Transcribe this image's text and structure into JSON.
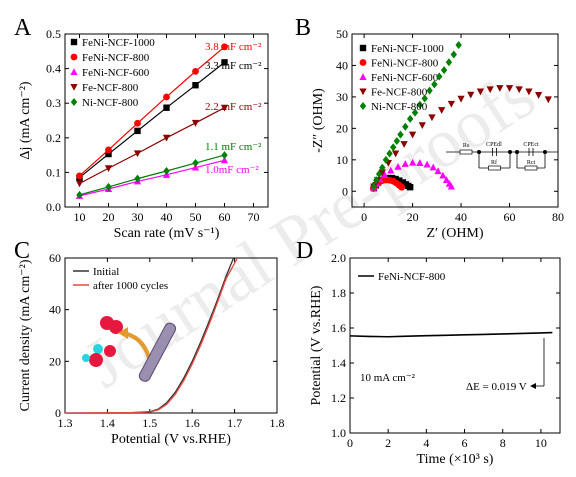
{
  "watermark": "Journal Pre-proofs",
  "chart_data": [
    {
      "panel": "A",
      "type": "line",
      "xlabel": "Scan rate (mV s⁻¹)",
      "ylabel": "Δj (mA cm⁻²)",
      "xlim": [
        5,
        75
      ],
      "ylim": [
        0,
        0.5
      ],
      "xticks": [
        10,
        20,
        30,
        40,
        50,
        60,
        70
      ],
      "yticks": [
        0.0,
        0.1,
        0.2,
        0.3,
        0.4,
        0.5
      ],
      "ytick_labels": [
        "0.0",
        "0.1",
        "0.2",
        "0.3",
        "0.4",
        "0.5"
      ],
      "legend_position": "top-left",
      "x": [
        10,
        20,
        30,
        40,
        50,
        60
      ],
      "series": [
        {
          "name": "FeNi-NCF-1000",
          "color": "#000000",
          "marker": "square",
          "values": [
            0.085,
            0.153,
            0.22,
            0.287,
            0.352,
            0.418
          ],
          "annotation": "3.3 mF cm⁻²"
        },
        {
          "name": "FeNi-NCF-800",
          "color": "#ff0000",
          "marker": "circle",
          "values": [
            0.09,
            0.165,
            0.242,
            0.318,
            0.392,
            0.463
          ],
          "annotation": "3.8 mF cm⁻²"
        },
        {
          "name": "FeNi-NCF-600",
          "color": "#ff00ff",
          "marker": "triangle-up",
          "values": [
            0.032,
            0.052,
            0.074,
            0.093,
            0.114,
            0.135
          ],
          "annotation": "1.0mF cm⁻²"
        },
        {
          "name": "Fe-NCF-800",
          "color": "#8b0000",
          "marker": "triangle-down",
          "values": [
            0.068,
            0.112,
            0.155,
            0.2,
            0.243,
            0.287
          ],
          "annotation": "2.2 mF cm⁻²"
        },
        {
          "name": "Ni-NCF-800",
          "color": "#008000",
          "marker": "diamond",
          "values": [
            0.035,
            0.058,
            0.082,
            0.104,
            0.127,
            0.15
          ],
          "annotation": "1.1 mF cm⁻²"
        }
      ]
    },
    {
      "panel": "B",
      "type": "scatter",
      "xlabel": "Z′ (OHM)",
      "ylabel": "-Z″ (OHM)",
      "xlim": [
        -5,
        80
      ],
      "ylim": [
        -5,
        50
      ],
      "xticks": [
        0,
        20,
        40,
        60,
        80
      ],
      "yticks": [
        0,
        10,
        20,
        30,
        40,
        50
      ],
      "legend_position": "top-left",
      "circuit_labels": [
        "Rs",
        "CPEdl",
        "Rf",
        "CPEct",
        "Rct"
      ],
      "series": [
        {
          "name": "FeNi-NCF-1000",
          "color": "#000000",
          "marker": "square",
          "x": [
            4.0,
            4.8,
            5.8,
            7.0,
            8.5,
            10.0,
            11.5,
            13.0,
            14.5,
            16.0,
            17.2,
            18.2,
            19.0
          ],
          "y": [
            1.0,
            1.9,
            2.8,
            3.5,
            4.0,
            4.2,
            4.2,
            3.9,
            3.4,
            2.8,
            2.2,
            1.7,
            1.3
          ]
        },
        {
          "name": "FeNi-NCF-800",
          "color": "#ff0000",
          "marker": "circle",
          "x": [
            3.8,
            4.5,
            5.3,
            6.3,
            7.5,
            9.0,
            10.5,
            12.0,
            13.3,
            14.5,
            15.5
          ],
          "y": [
            0.9,
            1.7,
            2.4,
            3.0,
            3.4,
            3.6,
            3.5,
            3.2,
            2.6,
            1.9,
            1.3
          ]
        },
        {
          "name": "FeNi-NCF-600",
          "color": "#ff00ff",
          "marker": "triangle-up",
          "x": [
            4.0,
            5.0,
            6.5,
            8.5,
            11.0,
            14.0,
            17.0,
            20.0,
            23.0,
            26.0,
            28.5,
            30.5,
            32.5,
            34.0,
            35.2,
            36.0
          ],
          "y": [
            1.2,
            2.4,
            3.8,
            5.2,
            6.6,
            7.8,
            8.7,
            9.1,
            9.0,
            8.5,
            7.6,
            6.4,
            5.0,
            3.6,
            2.4,
            1.5
          ]
        },
        {
          "name": "Fe-NCF-800",
          "color": "#8b0000",
          "marker": "triangle-down",
          "x": [
            4.0,
            5.5,
            7.5,
            10.0,
            13.0,
            16.5,
            20.0,
            24.0,
            28.0,
            32.0,
            36.0,
            40.0,
            44.0,
            48.0,
            52.0,
            56.0,
            60.0,
            64.0,
            68.0,
            72.0,
            76.0
          ],
          "y": [
            1.5,
            3.5,
            6.0,
            9.0,
            12.0,
            15.0,
            18.0,
            21.0,
            23.5,
            25.8,
            27.8,
            29.4,
            30.7,
            31.7,
            32.4,
            32.8,
            32.8,
            32.4,
            31.7,
            30.6,
            29.2
          ]
        },
        {
          "name": "Ni-NCF-800",
          "color": "#008000",
          "marker": "diamond",
          "x": [
            4.0,
            5.0,
            6.2,
            7.5,
            9.0,
            10.5,
            12.0,
            13.5,
            15.0,
            17.0,
            19.0,
            21.0,
            23.0,
            25.0,
            27.0,
            29.0,
            31.0,
            33.0,
            35.0,
            37.0,
            39.0
          ],
          "y": [
            1.5,
            3.5,
            5.5,
            7.5,
            10.0,
            12.0,
            14.0,
            16.0,
            18.0,
            20.5,
            23.0,
            25.0,
            27.5,
            29.5,
            32.0,
            34.0,
            36.5,
            38.5,
            41.0,
            43.5,
            46.5
          ]
        }
      ]
    },
    {
      "panel": "C",
      "type": "line",
      "xlabel": "Potential (V vs.RHE)",
      "ylabel": "Current density (mA cm⁻²)",
      "xlim": [
        1.3,
        1.8
      ],
      "ylim": [
        0,
        60
      ],
      "xticks": [
        1.3,
        1.4,
        1.5,
        1.6,
        1.7,
        1.8
      ],
      "xtick_labels": [
        "1.3",
        "1.4",
        "1.5",
        "1.6",
        "1.7",
        "1.8"
      ],
      "yticks": [
        0,
        20,
        40,
        60
      ],
      "legend_position": "top-left",
      "series": [
        {
          "name": "Initial",
          "color": "#333333",
          "x": [
            1.3,
            1.45,
            1.5,
            1.52,
            1.54,
            1.56,
            1.58,
            1.6,
            1.62,
            1.64,
            1.66,
            1.68,
            1.7
          ],
          "y": [
            0,
            0.1,
            0.5,
            1.5,
            4.0,
            8.0,
            13.5,
            20.0,
            27.5,
            35.5,
            44.0,
            53.0,
            61.0
          ]
        },
        {
          "name": "after 1000 cycles",
          "color": "#e8473f",
          "x": [
            1.3,
            1.45,
            1.5,
            1.52,
            1.54,
            1.56,
            1.58,
            1.6,
            1.62,
            1.64,
            1.66,
            1.68,
            1.71
          ],
          "y": [
            0,
            0.1,
            0.4,
            1.2,
            3.4,
            7.2,
            12.5,
            19.0,
            26.3,
            34.3,
            43.0,
            52.0,
            61.0
          ]
        }
      ]
    },
    {
      "panel": "D",
      "type": "line",
      "xlabel": "Time (×10³ s)",
      "ylabel": "Potential (V vs.RHE)",
      "xlim": [
        0,
        11
      ],
      "ylim": [
        1.0,
        2.0
      ],
      "xticks": [
        0,
        2,
        4,
        6,
        8,
        10
      ],
      "yticks": [
        1.0,
        1.2,
        1.4,
        1.6,
        1.8,
        2.0
      ],
      "ytick_labels": [
        "1.0",
        "1.2",
        "1.4",
        "1.6",
        "1.8",
        "2.0"
      ],
      "legend_position": "top-left",
      "annotations": [
        "10 mA cm⁻²",
        "ΔE = 0.019 V"
      ],
      "series": [
        {
          "name": "FeNi-NCF-800",
          "color": "#000000",
          "x": [
            0,
            1,
            2,
            3,
            4,
            5,
            6,
            7,
            8,
            9,
            10,
            10.6
          ],
          "y": [
            1.555,
            1.552,
            1.55,
            1.553,
            1.556,
            1.558,
            1.561,
            1.563,
            1.566,
            1.569,
            1.572,
            1.574
          ]
        }
      ]
    }
  ]
}
